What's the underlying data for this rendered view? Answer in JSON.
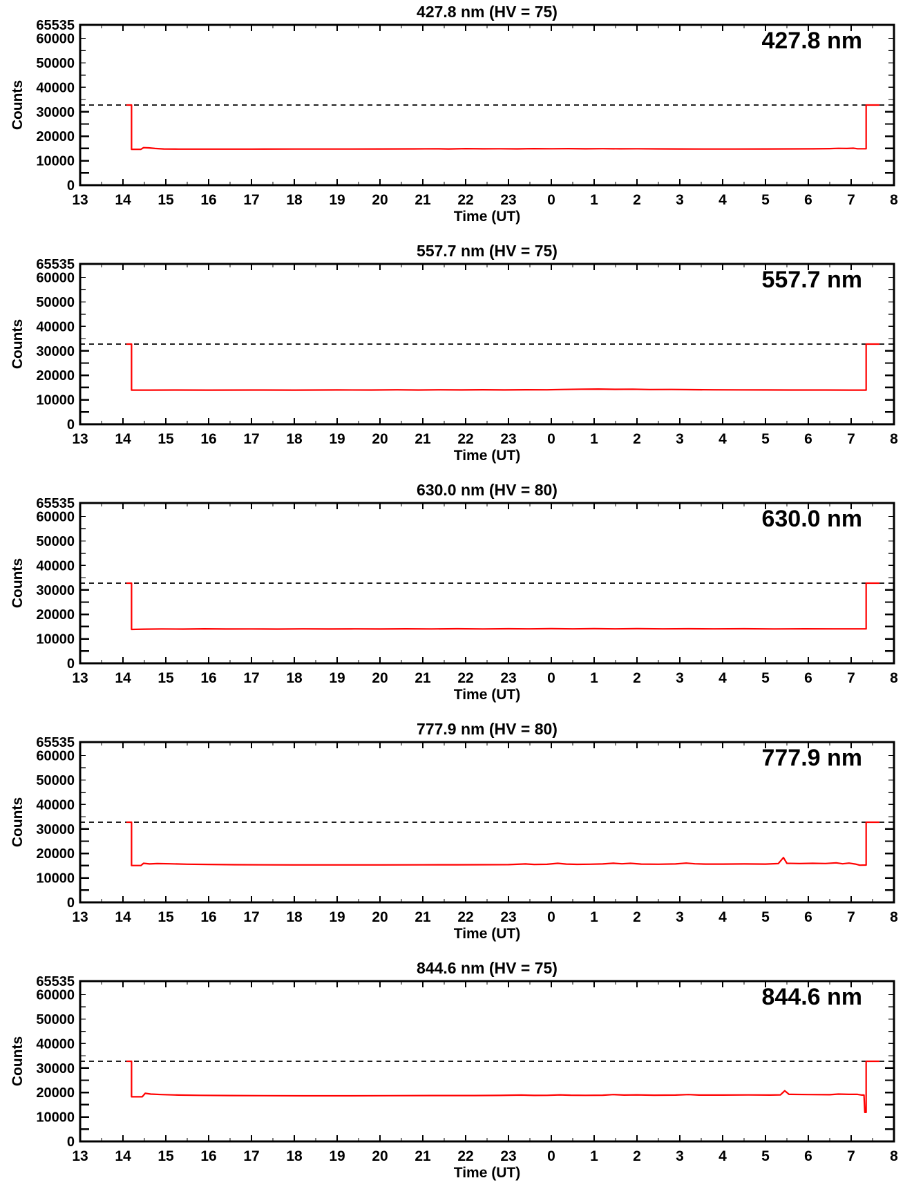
{
  "figure": {
    "background": "#ffffff",
    "axis_color": "#000000",
    "series_color": "#ff0000",
    "dashed_line_color": "#000000",
    "xlabel": "Time (UT)",
    "ylabel": "Counts",
    "x_range": [
      13,
      32
    ],
    "y_range": [
      0,
      65535
    ],
    "dashed_line_value": 32768,
    "x_tick_labels": [
      "13",
      "14",
      "15",
      "16",
      "17",
      "18",
      "19",
      "20",
      "21",
      "22",
      "23",
      "0",
      "1",
      "2",
      "3",
      "4",
      "5",
      "6",
      "7",
      "8"
    ],
    "y_tick_labels": [
      "0",
      "10000",
      "20000",
      "30000",
      "40000",
      "50000",
      "60000"
    ],
    "y_axis_top_label": "65535",
    "y_tick_step": 10000,
    "y_minor_step": 5000,
    "grid": "off",
    "legend": "none"
  },
  "chart_data": [
    {
      "type": "line",
      "title": "427.8 nm (HV = 75)",
      "annotation": "427.8 nm",
      "wavelength": "427.8 nm",
      "hv": 75,
      "xlabel": "Time (UT)",
      "ylabel": "Counts",
      "x_range": [
        13,
        32
      ],
      "y_range": [
        0,
        65535
      ],
      "dashed_y": 32768,
      "series": [
        {
          "name": "counts",
          "color": "#ff0000",
          "points": [
            [
              14.08,
              32768
            ],
            [
              14.2,
              32768
            ],
            [
              14.2,
              14650
            ],
            [
              14.42,
              14650
            ],
            [
              14.48,
              15350
            ],
            [
              14.6,
              15250
            ],
            [
              14.75,
              15000
            ],
            [
              14.95,
              14800
            ],
            [
              15.3,
              14750
            ],
            [
              16.0,
              14750
            ],
            [
              17.0,
              14750
            ],
            [
              18.0,
              14760
            ],
            [
              19.0,
              14770
            ],
            [
              20.0,
              14800
            ],
            [
              20.8,
              14820
            ],
            [
              21.3,
              14900
            ],
            [
              21.6,
              14800
            ],
            [
              22.0,
              14950
            ],
            [
              22.4,
              14850
            ],
            [
              22.8,
              14900
            ],
            [
              23.2,
              14820
            ],
            [
              23.6,
              14950
            ],
            [
              24.0,
              14880
            ],
            [
              24.4,
              14940
            ],
            [
              24.8,
              14860
            ],
            [
              25.2,
              14920
            ],
            [
              25.6,
              14860
            ],
            [
              26.0,
              14900
            ],
            [
              26.5,
              14830
            ],
            [
              27.0,
              14800
            ],
            [
              27.6,
              14780
            ],
            [
              28.3,
              14780
            ],
            [
              29.0,
              14800
            ],
            [
              29.6,
              14830
            ],
            [
              30.1,
              14850
            ],
            [
              30.5,
              14950
            ],
            [
              30.7,
              15050
            ],
            [
              30.9,
              15000
            ],
            [
              31.05,
              15100
            ],
            [
              31.15,
              14900
            ],
            [
              31.35,
              14900
            ],
            [
              31.35,
              32768
            ],
            [
              31.66,
              32768
            ]
          ]
        }
      ]
    },
    {
      "type": "line",
      "title": "557.7 nm (HV = 75)",
      "annotation": "557.7 nm",
      "wavelength": "557.7 nm",
      "hv": 75,
      "xlabel": "Time (UT)",
      "ylabel": "Counts",
      "x_range": [
        13,
        32
      ],
      "y_range": [
        0,
        65535
      ],
      "dashed_y": 32768,
      "series": [
        {
          "name": "counts",
          "color": "#ff0000",
          "points": [
            [
              14.08,
              32768
            ],
            [
              14.2,
              32768
            ],
            [
              14.2,
              13950
            ],
            [
              14.6,
              13950
            ],
            [
              15.2,
              13980
            ],
            [
              16.0,
              13960
            ],
            [
              17.0,
              13990
            ],
            [
              18.0,
              13960
            ],
            [
              19.0,
              14000
            ],
            [
              19.8,
              13970
            ],
            [
              20.4,
              14060
            ],
            [
              20.9,
              13990
            ],
            [
              21.4,
              14080
            ],
            [
              21.9,
              14010
            ],
            [
              22.4,
              14090
            ],
            [
              22.9,
              14020
            ],
            [
              23.4,
              14100
            ],
            [
              23.9,
              14060
            ],
            [
              24.3,
              14200
            ],
            [
              24.7,
              14330
            ],
            [
              25.1,
              14380
            ],
            [
              25.5,
              14260
            ],
            [
              25.9,
              14320
            ],
            [
              26.3,
              14180
            ],
            [
              26.8,
              14220
            ],
            [
              27.3,
              14120
            ],
            [
              27.8,
              14080
            ],
            [
              28.4,
              14040
            ],
            [
              29.0,
              14010
            ],
            [
              29.7,
              13990
            ],
            [
              30.4,
              13980
            ],
            [
              31.0,
              13960
            ],
            [
              31.35,
              13960
            ],
            [
              31.35,
              32768
            ],
            [
              31.66,
              32768
            ]
          ]
        }
      ]
    },
    {
      "type": "line",
      "title": "630.0 nm (HV = 80)",
      "annotation": "630.0 nm",
      "wavelength": "630.0 nm",
      "hv": 80,
      "xlabel": "Time (UT)",
      "ylabel": "Counts",
      "x_range": [
        13,
        32
      ],
      "y_range": [
        0,
        65535
      ],
      "dashed_y": 32768,
      "series": [
        {
          "name": "counts",
          "color": "#ff0000",
          "points": [
            [
              14.08,
              32768
            ],
            [
              14.2,
              32768
            ],
            [
              14.2,
              13850
            ],
            [
              14.5,
              13950
            ],
            [
              14.9,
              14050
            ],
            [
              15.4,
              13980
            ],
            [
              15.9,
              14090
            ],
            [
              16.4,
              14000
            ],
            [
              17.0,
              14050
            ],
            [
              17.6,
              13990
            ],
            [
              18.2,
              14060
            ],
            [
              18.8,
              14000
            ],
            [
              19.4,
              14080
            ],
            [
              20.0,
              14010
            ],
            [
              20.6,
              14100
            ],
            [
              21.2,
              14030
            ],
            [
              21.8,
              14110
            ],
            [
              22.4,
              14040
            ],
            [
              23.0,
              14130
            ],
            [
              23.5,
              14060
            ],
            [
              24.0,
              14150
            ],
            [
              24.5,
              14080
            ],
            [
              25.0,
              14160
            ],
            [
              25.5,
              14070
            ],
            [
              26.0,
              14140
            ],
            [
              26.6,
              14060
            ],
            [
              27.2,
              14130
            ],
            [
              27.8,
              14060
            ],
            [
              28.5,
              14110
            ],
            [
              29.2,
              14050
            ],
            [
              29.9,
              14100
            ],
            [
              30.6,
              14060
            ],
            [
              31.35,
              14080
            ],
            [
              31.35,
              32768
            ],
            [
              31.66,
              32768
            ]
          ]
        }
      ]
    },
    {
      "type": "line",
      "title": "777.9 nm (HV = 80)",
      "annotation": "777.9 nm",
      "wavelength": "777.9 nm",
      "hv": 80,
      "xlabel": "Time (UT)",
      "ylabel": "Counts",
      "x_range": [
        13,
        32
      ],
      "y_range": [
        0,
        65535
      ],
      "dashed_y": 32768,
      "series": [
        {
          "name": "counts",
          "color": "#ff0000",
          "points": [
            [
              14.08,
              32768
            ],
            [
              14.2,
              32768
            ],
            [
              14.2,
              15050
            ],
            [
              14.42,
              15050
            ],
            [
              14.48,
              15950
            ],
            [
              14.62,
              15700
            ],
            [
              14.8,
              15850
            ],
            [
              15.1,
              15750
            ],
            [
              15.5,
              15600
            ],
            [
              16.0,
              15500
            ],
            [
              16.6,
              15400
            ],
            [
              17.3,
              15350
            ],
            [
              18.0,
              15320
            ],
            [
              19.0,
              15300
            ],
            [
              20.0,
              15310
            ],
            [
              21.0,
              15330
            ],
            [
              21.8,
              15360
            ],
            [
              22.4,
              15400
            ],
            [
              23.0,
              15420
            ],
            [
              23.4,
              15700
            ],
            [
              23.6,
              15520
            ],
            [
              23.9,
              15560
            ],
            [
              24.15,
              15950
            ],
            [
              24.35,
              15650
            ],
            [
              24.6,
              15550
            ],
            [
              24.9,
              15600
            ],
            [
              25.2,
              15700
            ],
            [
              25.45,
              15980
            ],
            [
              25.65,
              15750
            ],
            [
              25.85,
              15950
            ],
            [
              26.1,
              15650
            ],
            [
              26.5,
              15600
            ],
            [
              26.9,
              15700
            ],
            [
              27.15,
              16050
            ],
            [
              27.35,
              15750
            ],
            [
              27.6,
              15650
            ],
            [
              28.0,
              15650
            ],
            [
              28.5,
              15700
            ],
            [
              29.0,
              15650
            ],
            [
              29.3,
              15850
            ],
            [
              29.42,
              18300
            ],
            [
              29.5,
              15950
            ],
            [
              29.8,
              15850
            ],
            [
              30.1,
              15950
            ],
            [
              30.4,
              15880
            ],
            [
              30.65,
              16150
            ],
            [
              30.8,
              15750
            ],
            [
              30.95,
              16050
            ],
            [
              31.1,
              15650
            ],
            [
              31.2,
              15200
            ],
            [
              31.35,
              15250
            ],
            [
              31.35,
              32768
            ],
            [
              31.66,
              32768
            ]
          ]
        }
      ]
    },
    {
      "type": "line",
      "title": "844.6 nm (HV = 75)",
      "annotation": "844.6 nm",
      "wavelength": "844.6 nm",
      "hv": 75,
      "xlabel": "Time (UT)",
      "ylabel": "Counts",
      "x_range": [
        13,
        32
      ],
      "y_range": [
        0,
        65535
      ],
      "dashed_y": 32768,
      "series": [
        {
          "name": "counts",
          "color": "#ff0000",
          "points": [
            [
              14.08,
              32768
            ],
            [
              14.2,
              32768
            ],
            [
              14.2,
              18250
            ],
            [
              14.45,
              18250
            ],
            [
              14.52,
              19650
            ],
            [
              14.65,
              19350
            ],
            [
              14.9,
              19150
            ],
            [
              15.3,
              18950
            ],
            [
              15.8,
              18850
            ],
            [
              16.5,
              18750
            ],
            [
              17.3,
              18700
            ],
            [
              18.2,
              18650
            ],
            [
              19.2,
              18650
            ],
            [
              20.2,
              18700
            ],
            [
              21.2,
              18750
            ],
            [
              22.2,
              18750
            ],
            [
              22.8,
              18800
            ],
            [
              23.3,
              18950
            ],
            [
              23.6,
              18800
            ],
            [
              23.9,
              18850
            ],
            [
              24.2,
              19050
            ],
            [
              24.45,
              18900
            ],
            [
              24.8,
              18850
            ],
            [
              25.2,
              18900
            ],
            [
              25.45,
              19150
            ],
            [
              25.7,
              18950
            ],
            [
              26.0,
              19050
            ],
            [
              26.4,
              18900
            ],
            [
              26.9,
              18950
            ],
            [
              27.2,
              19150
            ],
            [
              27.45,
              18950
            ],
            [
              28.0,
              18950
            ],
            [
              28.6,
              19000
            ],
            [
              29.1,
              18950
            ],
            [
              29.35,
              19050
            ],
            [
              29.45,
              20700
            ],
            [
              29.55,
              19250
            ],
            [
              30.0,
              19150
            ],
            [
              30.5,
              19100
            ],
            [
              30.7,
              19350
            ],
            [
              30.95,
              19250
            ],
            [
              31.15,
              19250
            ],
            [
              31.25,
              18950
            ],
            [
              31.3,
              18950
            ],
            [
              31.32,
              11900
            ],
            [
              31.35,
              11900
            ],
            [
              31.35,
              32768
            ],
            [
              31.66,
              32768
            ]
          ]
        }
      ]
    }
  ]
}
